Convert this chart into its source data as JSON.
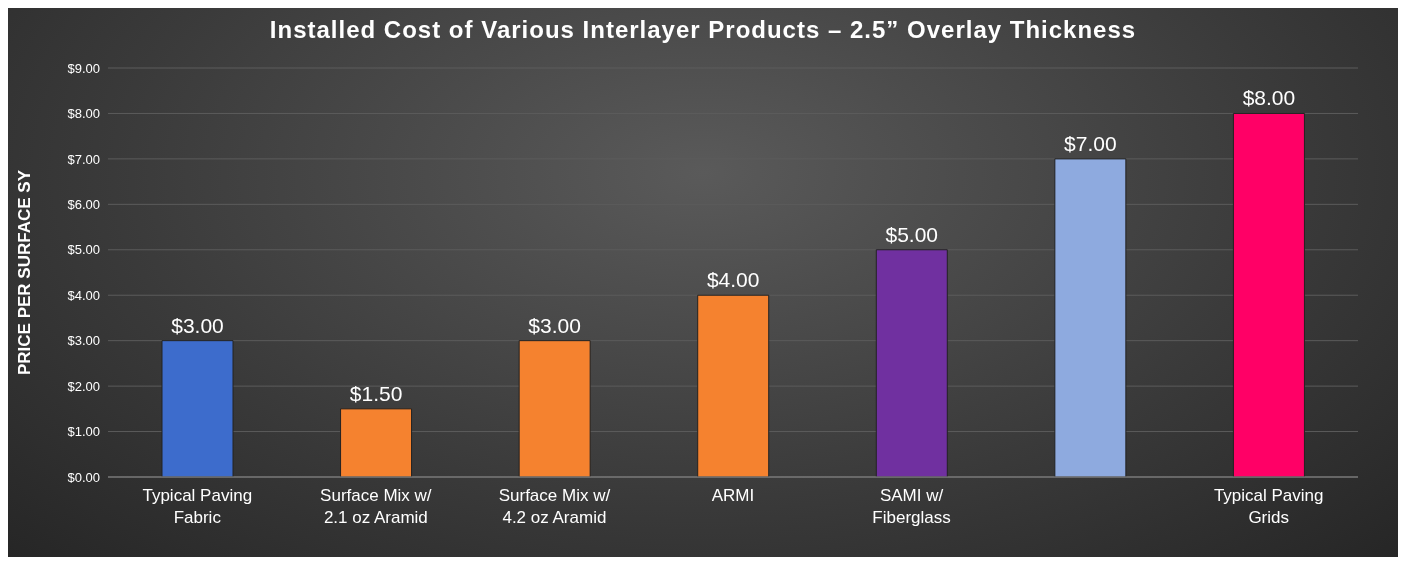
{
  "chart_data": {
    "type": "bar",
    "title": "Installed Cost of Various Interlayer Products – 2.5” Overlay Thickness",
    "ylabel": "PRICE PER SURFACE SY",
    "categories": [
      "Typical Paving\nFabric",
      "Surface Mix w/\n2.1 oz Aramid",
      "Surface Mix w/\n4.2 oz Aramid",
      "ARMI",
      "SAMI w/\nFiberglass",
      null,
      "Typical Paving\nGrids"
    ],
    "values": [
      3,
      1.5,
      3,
      4,
      5,
      7,
      8
    ],
    "colors": [
      "#3d6ccc",
      "#f5822f",
      "#f5822f",
      "#f5822f",
      "#7030a0",
      "#8eaadf",
      "#ff0066"
    ],
    "value_labels": [
      "$3.00",
      "$1.50",
      "$3.00",
      "$4.00",
      "$5.00",
      "$7.00",
      "$8.00"
    ],
    "ylim": [
      0,
      9
    ],
    "yticks": [
      {
        "value": 0,
        "label": "$0.00"
      },
      {
        "value": 1,
        "label": "$1.00"
      },
      {
        "value": 2,
        "label": "$2.00"
      },
      {
        "value": 3,
        "label": "$3.00"
      },
      {
        "value": 4,
        "label": "$4.00"
      },
      {
        "value": 5,
        "label": "$5.00"
      },
      {
        "value": 6,
        "label": "$6.00"
      },
      {
        "value": 7,
        "label": "$7.00"
      },
      {
        "value": 8,
        "label": "$8.00"
      },
      {
        "value": 9,
        "label": "$9.00"
      }
    ],
    "grid": "y",
    "legend": false
  }
}
